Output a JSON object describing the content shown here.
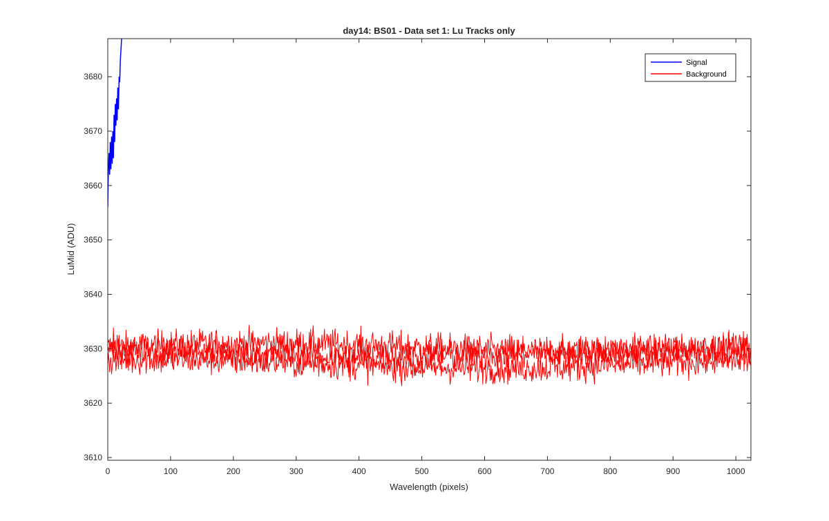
{
  "chart_data": {
    "type": "line",
    "title": "day14: BS01 - Data set 1: Lu Tracks only",
    "xlabel": "Wavelength (pixels)",
    "ylabel": "LuMid (ADU)",
    "xlim": [
      0,
      1024
    ],
    "ylim": [
      3609.5,
      3687
    ],
    "xticks": [
      0,
      100,
      200,
      300,
      400,
      500,
      600,
      700,
      800,
      900,
      1000
    ],
    "yticks": [
      3610,
      3620,
      3630,
      3640,
      3650,
      3660,
      3670,
      3680
    ],
    "grid": false,
    "legend_position": "top-right",
    "series": [
      {
        "name": "Signal",
        "color": "#0000ff",
        "x": [
          0,
          1,
          2,
          3,
          4,
          5,
          6,
          7,
          8,
          9,
          10,
          11,
          12,
          13,
          14,
          15,
          16,
          17,
          18,
          19,
          20,
          21,
          22,
          23
        ],
        "y": [
          3656,
          3663,
          3666,
          3662,
          3668,
          3663,
          3669,
          3664,
          3670,
          3665,
          3673,
          3668,
          3675,
          3671,
          3676,
          3672,
          3678,
          3674,
          3680,
          3679,
          3683,
          3685,
          3687,
          3688
        ]
      },
      {
        "name": "Background",
        "color": "#ff0000",
        "x_range": [
          0,
          1024
        ],
        "mean": 3629,
        "band_low": 3620,
        "band_high": 3637
      }
    ]
  }
}
